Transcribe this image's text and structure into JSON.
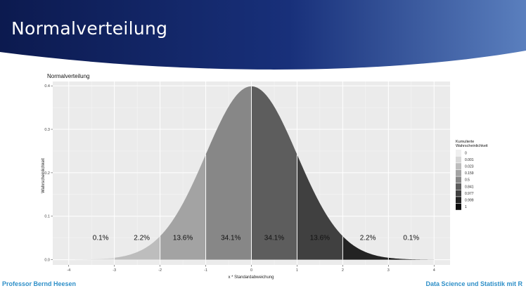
{
  "slide": {
    "title": "Normalverteilung",
    "footer_left": "Professor Bernd Heesen",
    "footer_right": "Data Science und Statistik mit R"
  },
  "colors": {
    "banner_dark": "#0c1a4f",
    "banner_light": "#5a7fbe",
    "panel_background": "#ebebeb",
    "footer_text": "#2e8fc8"
  },
  "chart_data": {
    "type": "area",
    "title": "Normalverteilung",
    "xlabel": "x * Standardabweichung",
    "ylabel": "Wahrscheinlichkeit",
    "xlim": [
      -4,
      4
    ],
    "ylim": [
      0,
      0.4
    ],
    "x_ticks": [
      "-4",
      "-3",
      "-2",
      "-1",
      "0",
      "1",
      "2",
      "3",
      "4"
    ],
    "y_ticks": [
      "0.0",
      "0.1",
      "0.2",
      "0.3",
      "0.4"
    ],
    "grid": true,
    "curve": "standard normal density",
    "regions": [
      {
        "from": -4,
        "to": -3,
        "cumulative": "0.001",
        "color": "#d8d8d8"
      },
      {
        "from": -3,
        "to": -2,
        "cumulative": "0.023",
        "color": "#bdbdbd"
      },
      {
        "from": -2,
        "to": -1,
        "cumulative": "0.159",
        "color": "#a3a3a3"
      },
      {
        "from": -1,
        "to": 0,
        "cumulative": "0.5",
        "color": "#878787"
      },
      {
        "from": 0,
        "to": 1,
        "cumulative": "0.841",
        "color": "#5d5d5d"
      },
      {
        "from": 1,
        "to": 2,
        "cumulative": "0.977",
        "color": "#404040"
      },
      {
        "from": 2,
        "to": 3,
        "cumulative": "0.999",
        "color": "#232323"
      },
      {
        "from": 3,
        "to": 4,
        "cumulative": "1",
        "color": "#0e0e0e"
      }
    ],
    "percent_labels": [
      {
        "x": -3.3,
        "text": "0.1%"
      },
      {
        "x": -2.4,
        "text": "2.2%"
      },
      {
        "x": -1.5,
        "text": "13.6%"
      },
      {
        "x": -0.45,
        "text": "34.1%"
      },
      {
        "x": 0.5,
        "text": "34.1%"
      },
      {
        "x": 1.5,
        "text": "13.6%"
      },
      {
        "x": 2.55,
        "text": "2.2%"
      },
      {
        "x": 3.5,
        "text": "0.1%"
      }
    ],
    "percent_label_y": 0.05,
    "legend": {
      "title_line1": "Kumulierte",
      "title_line2": "Wahrscheinlichkeit",
      "position": "right",
      "entries": [
        {
          "label": "0",
          "color": "#efefef"
        },
        {
          "label": "0.001",
          "color": "#d8d8d8"
        },
        {
          "label": "0.023",
          "color": "#bdbdbd"
        },
        {
          "label": "0.159",
          "color": "#a3a3a3"
        },
        {
          "label": "0.5",
          "color": "#878787"
        },
        {
          "label": "0.841",
          "color": "#5d5d5d"
        },
        {
          "label": "0.977",
          "color": "#404040"
        },
        {
          "label": "0.999",
          "color": "#232323"
        },
        {
          "label": "1",
          "color": "#0e0e0e"
        }
      ]
    }
  }
}
